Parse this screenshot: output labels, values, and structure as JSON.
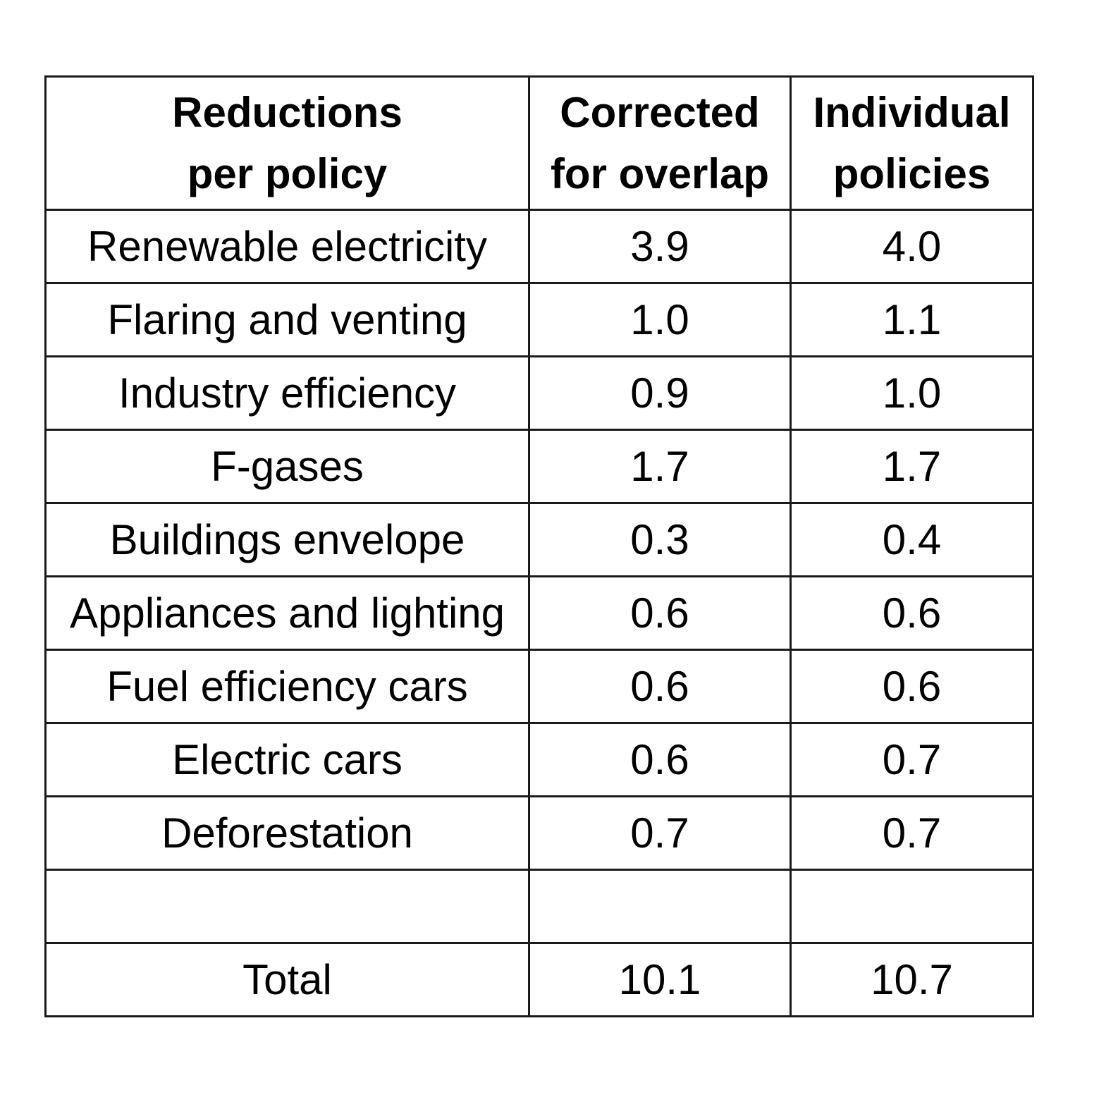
{
  "table": {
    "headers": [
      {
        "line1": "Reductions",
        "line2": "per policy"
      },
      {
        "line1": "Corrected",
        "line2": "for overlap"
      },
      {
        "line1": "Individual",
        "line2": "policies"
      }
    ],
    "rows": [
      {
        "policy": "Renewable electricity",
        "corrected": "3.9",
        "individual": "4.0"
      },
      {
        "policy": "Flaring and venting",
        "corrected": "1.0",
        "individual": "1.1"
      },
      {
        "policy": "Industry efficiency",
        "corrected": "0.9",
        "individual": "1.0"
      },
      {
        "policy": "F-gases",
        "corrected": "1.7",
        "individual": "1.7"
      },
      {
        "policy": "Buildings envelope",
        "corrected": "0.3",
        "individual": "0.4"
      },
      {
        "policy": "Appliances and lighting",
        "corrected": "0.6",
        "individual": "0.6"
      },
      {
        "policy": "Fuel efficiency cars",
        "corrected": "0.6",
        "individual": "0.6"
      },
      {
        "policy": "Electric cars",
        "corrected": "0.6",
        "individual": "0.7"
      },
      {
        "policy": "Deforestation",
        "corrected": "0.7",
        "individual": "0.7"
      },
      {
        "policy": "",
        "corrected": "",
        "individual": ""
      }
    ],
    "total": {
      "label": "Total",
      "corrected": "10.1",
      "individual": "10.7"
    }
  }
}
